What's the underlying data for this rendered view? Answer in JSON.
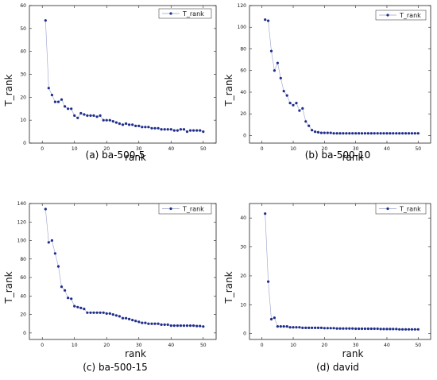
{
  "style": {
    "series_color": "#1f2d8c",
    "line_color": "#9aa0c8",
    "axis_color": "#222222"
  },
  "chart_data": [
    {
      "type": "line",
      "caption": "(a) ba-500-5",
      "xlabel": "rank",
      "ylabel": "T_rank",
      "xlim": [
        -4,
        54
      ],
      "ylim": [
        0,
        60
      ],
      "xticks": [
        0,
        10,
        20,
        30,
        40,
        50
      ],
      "yticks": [
        0,
        10,
        20,
        30,
        40,
        50,
        60
      ],
      "legend_position": "top-right",
      "series": [
        {
          "name": "T_rank",
          "x": [
            1,
            2,
            3,
            4,
            5,
            6,
            7,
            8,
            9,
            10,
            11,
            12,
            13,
            14,
            15,
            16,
            17,
            18,
            19,
            20,
            21,
            22,
            23,
            24,
            25,
            26,
            27,
            28,
            29,
            30,
            31,
            32,
            33,
            34,
            35,
            36,
            37,
            38,
            39,
            40,
            41,
            42,
            43,
            44,
            45,
            46,
            47,
            48,
            49,
            50
          ],
          "values": [
            53.5,
            24,
            21,
            18,
            18,
            19,
            16,
            15,
            15,
            12,
            11,
            13,
            12.5,
            12,
            12,
            12,
            11.5,
            12,
            10,
            10,
            10,
            9.5,
            9,
            8.5,
            8,
            8.5,
            8,
            8,
            7.5,
            7.5,
            7,
            7,
            7,
            6.5,
            6.5,
            6.5,
            6,
            6,
            6,
            6,
            5.5,
            5.5,
            6,
            6,
            5,
            5.5,
            5.5,
            5.5,
            5.5,
            5
          ]
        }
      ]
    },
    {
      "type": "line",
      "caption": "(b) ba-500-10",
      "xlabel": "rank",
      "ylabel": "T_rank",
      "xlim": [
        -4,
        54
      ],
      "ylim": [
        -7,
        120
      ],
      "xticks": [
        0,
        10,
        20,
        30,
        40,
        50
      ],
      "yticks": [
        0,
        20,
        40,
        60,
        80,
        100,
        120
      ],
      "legend_position": "top-right",
      "series": [
        {
          "name": "T_rank",
          "x": [
            1,
            2,
            3,
            4,
            5,
            6,
            7,
            8,
            9,
            10,
            11,
            12,
            13,
            14,
            15,
            16,
            17,
            18,
            19,
            20,
            21,
            22,
            23,
            24,
            25,
            26,
            27,
            28,
            29,
            30,
            31,
            32,
            33,
            34,
            35,
            36,
            37,
            38,
            39,
            40,
            41,
            42,
            43,
            44,
            45,
            46,
            47,
            48,
            49,
            50
          ],
          "values": [
            107,
            106,
            78,
            60,
            67,
            53,
            41,
            37,
            30,
            28,
            30,
            23,
            25,
            13,
            9,
            5,
            3.5,
            3,
            2.5,
            2.5,
            2.5,
            2.5,
            2,
            2,
            2,
            2,
            2,
            2,
            2,
            2,
            2,
            2,
            2,
            2,
            2,
            2,
            2,
            2,
            2,
            2,
            2,
            2,
            2,
            2,
            2,
            2,
            2,
            2,
            2,
            2
          ]
        }
      ]
    },
    {
      "type": "line",
      "caption": "(c) ba-500-15",
      "xlabel": "rank",
      "ylabel": "T_rank",
      "xlim": [
        -4,
        54
      ],
      "ylim": [
        -7,
        140
      ],
      "xticks": [
        0,
        10,
        20,
        30,
        40,
        50
      ],
      "yticks": [
        0,
        20,
        40,
        60,
        80,
        100,
        120,
        140
      ],
      "legend_position": "top-right",
      "series": [
        {
          "name": "T_rank",
          "x": [
            1,
            2,
            3,
            4,
            5,
            6,
            7,
            8,
            9,
            10,
            11,
            12,
            13,
            14,
            15,
            16,
            17,
            18,
            19,
            20,
            21,
            22,
            23,
            24,
            25,
            26,
            27,
            28,
            29,
            30,
            31,
            32,
            33,
            34,
            35,
            36,
            37,
            38,
            39,
            40,
            41,
            42,
            43,
            44,
            45,
            46,
            47,
            48,
            49,
            50
          ],
          "values": [
            134,
            98,
            100,
            86,
            72,
            50,
            46,
            38,
            37,
            29,
            28,
            27,
            26,
            22,
            22,
            22,
            22,
            22,
            22,
            21,
            21,
            20,
            19,
            18,
            16,
            16,
            15,
            14,
            13,
            12,
            11,
            11,
            10,
            10,
            10,
            10,
            9,
            9,
            9,
            8,
            8,
            8,
            8,
            8,
            8,
            8,
            8,
            7.5,
            7.5,
            7
          ]
        }
      ]
    },
    {
      "type": "line",
      "caption": "(d) david",
      "xlabel": "rank",
      "ylabel": "T_rank",
      "xlim": [
        -4,
        54
      ],
      "ylim": [
        -2,
        45
      ],
      "xticks": [
        0,
        10,
        20,
        30,
        40,
        50
      ],
      "yticks": [
        0,
        10,
        20,
        30,
        40
      ],
      "legend_position": "top-right",
      "series": [
        {
          "name": "T_rank",
          "x": [
            1,
            2,
            3,
            4,
            5,
            6,
            7,
            8,
            9,
            10,
            11,
            12,
            13,
            14,
            15,
            16,
            17,
            18,
            19,
            20,
            21,
            22,
            23,
            24,
            25,
            26,
            27,
            28,
            29,
            30,
            31,
            32,
            33,
            34,
            35,
            36,
            37,
            38,
            39,
            40,
            41,
            42,
            43,
            44,
            45,
            46,
            47,
            48,
            49,
            50
          ],
          "values": [
            41.5,
            18,
            5,
            5.5,
            2.5,
            2.5,
            2.5,
            2.5,
            2.2,
            2.2,
            2.2,
            2.2,
            2,
            2,
            2,
            2,
            2,
            2,
            2,
            1.9,
            1.9,
            1.9,
            1.9,
            1.8,
            1.8,
            1.8,
            1.8,
            1.8,
            1.8,
            1.7,
            1.7,
            1.7,
            1.7,
            1.7,
            1.7,
            1.7,
            1.7,
            1.6,
            1.6,
            1.6,
            1.6,
            1.6,
            1.6,
            1.5,
            1.5,
            1.5,
            1.5,
            1.5,
            1.5,
            1.5
          ]
        }
      ]
    }
  ]
}
